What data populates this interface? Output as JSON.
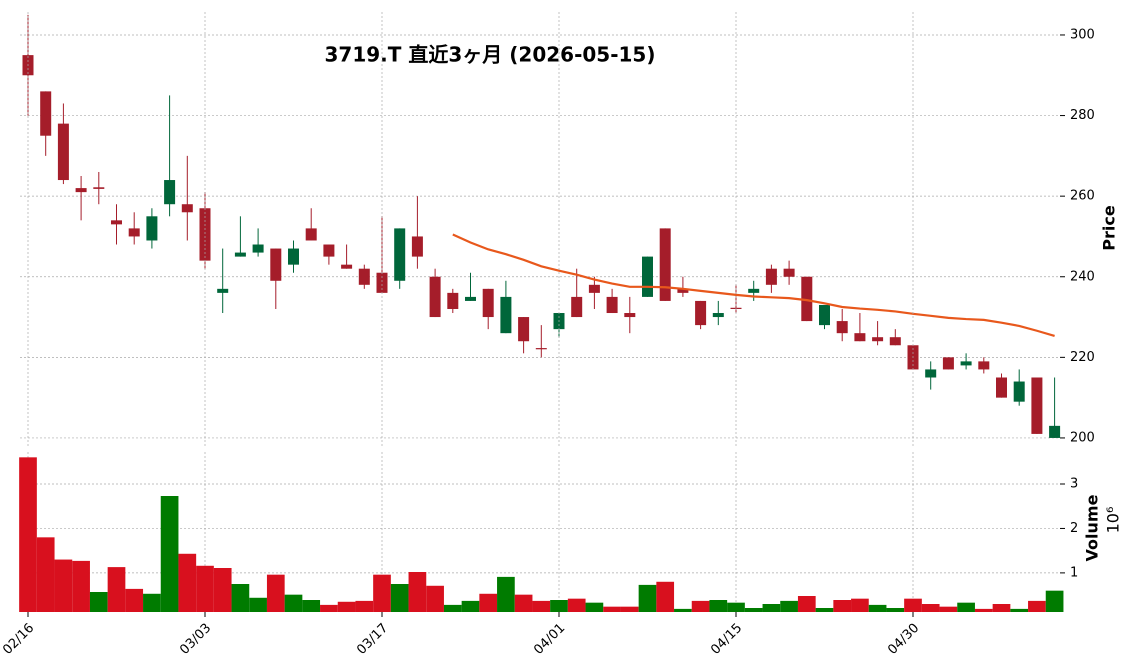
{
  "chart_data": [
    {
      "type": "candlestick",
      "title": "3719.T  直近3ヶ月  (2026-05-15)",
      "ylabel": "Price",
      "up_color": "#00663a",
      "down_color": "#a51d2a",
      "grid": true,
      "ylim": [
        198,
        305.7
      ],
      "yticks": [
        200,
        220,
        240,
        260,
        280,
        300
      ],
      "open": [
        295,
        286,
        278,
        262,
        262.2,
        254,
        252,
        249,
        258,
        258,
        257,
        236,
        245,
        246,
        247,
        243,
        252,
        248,
        243,
        242,
        241,
        239,
        250,
        240,
        236,
        234,
        237,
        226,
        230,
        222.3,
        227,
        235,
        238,
        235,
        231,
        235,
        252,
        237,
        234,
        230,
        232.3,
        236,
        242,
        242,
        240,
        228,
        229,
        226,
        225,
        225,
        223,
        215,
        220,
        218,
        219,
        215,
        209,
        215,
        200
      ],
      "high": [
        305,
        286,
        283,
        265,
        266,
        258,
        256,
        257,
        285,
        270,
        261,
        247,
        255,
        252,
        247,
        249,
        257,
        248,
        248,
        243,
        255,
        252,
        260,
        242,
        237,
        241,
        237,
        239,
        230,
        228,
        231,
        242,
        240,
        237,
        235,
        245,
        252,
        240,
        234,
        234,
        238,
        239,
        243,
        244,
        240,
        233,
        232,
        231,
        229,
        227,
        223,
        219,
        220,
        221,
        220,
        216,
        217,
        215,
        215
      ],
      "low": [
        280,
        270,
        263,
        254,
        258,
        248,
        248,
        247,
        255,
        249,
        242,
        231,
        245,
        245,
        232,
        241,
        249,
        243,
        242,
        237,
        236,
        237,
        242,
        230,
        231,
        234,
        227,
        226,
        221,
        220,
        225,
        230,
        232,
        231,
        226,
        235,
        234,
        235,
        227,
        228,
        231,
        234,
        236,
        238,
        229,
        227,
        224,
        224,
        223,
        223,
        217,
        212,
        217,
        217,
        216,
        210,
        208,
        201,
        200
      ],
      "close": [
        290,
        275,
        264,
        261,
        261.8,
        253,
        250,
        255,
        264,
        256,
        244,
        237,
        246,
        248,
        239,
        247,
        249,
        245,
        242,
        238,
        236,
        252,
        245,
        230,
        232,
        235,
        230,
        235,
        224,
        222,
        231,
        230,
        236,
        231,
        230,
        245,
        234,
        236,
        228,
        231,
        232,
        237,
        238,
        240,
        229,
        233,
        226,
        224,
        224,
        223,
        217,
        217,
        217,
        219,
        217,
        210,
        214,
        201,
        203
      ],
      "moving_average": {
        "color": "#e8581c",
        "values": [
          null,
          null,
          null,
          null,
          null,
          null,
          null,
          null,
          null,
          null,
          null,
          null,
          null,
          null,
          null,
          null,
          null,
          null,
          null,
          null,
          null,
          null,
          null,
          null,
          250.5,
          248.5,
          246.8,
          245.6,
          244.2,
          242.6,
          241.5,
          240.5,
          239.3,
          238.3,
          237.5,
          237.5,
          237.4,
          237.0,
          236.5,
          236.0,
          235.5,
          235.1,
          234.9,
          234.7,
          234.2,
          233.4,
          232.5,
          232.1,
          231.8,
          231.4,
          230.8,
          230.3,
          229.8,
          229.5,
          229.3,
          228.6,
          227.8,
          226.6,
          225.3
        ]
      }
    },
    {
      "type": "bar",
      "ylabel": "Volume",
      "exponent": "10⁶",
      "grid": true,
      "ylim": [
        0.12,
        3.72
      ],
      "yticks": [
        1,
        2,
        3
      ],
      "categories": [
        "02/16",
        null,
        null,
        null,
        null,
        null,
        null,
        null,
        null,
        null,
        "03/03",
        null,
        null,
        null,
        null,
        null,
        null,
        null,
        null,
        null,
        "03/17",
        null,
        null,
        null,
        null,
        null,
        null,
        null,
        null,
        null,
        "04/01",
        null,
        null,
        null,
        null,
        null,
        null,
        null,
        null,
        null,
        "04/15",
        null,
        null,
        null,
        null,
        null,
        null,
        null,
        null,
        null,
        "04/30",
        null,
        null,
        null,
        null,
        null,
        null,
        null,
        null
      ],
      "values": [
        3.6,
        1.8,
        1.3,
        1.27,
        0.57,
        1.13,
        0.64,
        0.53,
        2.73,
        1.43,
        1.16,
        1.11,
        0.75,
        0.44,
        0.96,
        0.51,
        0.39,
        0.28,
        0.35,
        0.37,
        0.96,
        0.75,
        1.02,
        0.71,
        0.28,
        0.37,
        0.53,
        0.91,
        0.51,
        0.37,
        0.39,
        0.42,
        0.33,
        0.24,
        0.24,
        0.73,
        0.8,
        0.19,
        0.37,
        0.39,
        0.33,
        0.21,
        0.3,
        0.37,
        0.48,
        0.21,
        0.39,
        0.42,
        0.28,
        0.21,
        0.42,
        0.3,
        0.24,
        0.33,
        0.19,
        0.3,
        0.19,
        0.37,
        0.6
      ],
      "up_color": "#007b00",
      "down_color": "#d8101e",
      "directions": [
        "down",
        "down",
        "down",
        "down",
        "up",
        "down",
        "down",
        "up",
        "up",
        "down",
        "down",
        "down",
        "up",
        "up",
        "down",
        "up",
        "up",
        "down",
        "down",
        "down",
        "down",
        "up",
        "down",
        "down",
        "up",
        "up",
        "down",
        "up",
        "down",
        "down",
        "up",
        "down",
        "up",
        "down",
        "down",
        "up",
        "down",
        "up",
        "down",
        "up",
        "up",
        "up",
        "up",
        "up",
        "down",
        "up",
        "down",
        "down",
        "up",
        "up",
        "down",
        "down",
        "down",
        "up",
        "down",
        "down",
        "up",
        "down",
        "up"
      ]
    }
  ]
}
